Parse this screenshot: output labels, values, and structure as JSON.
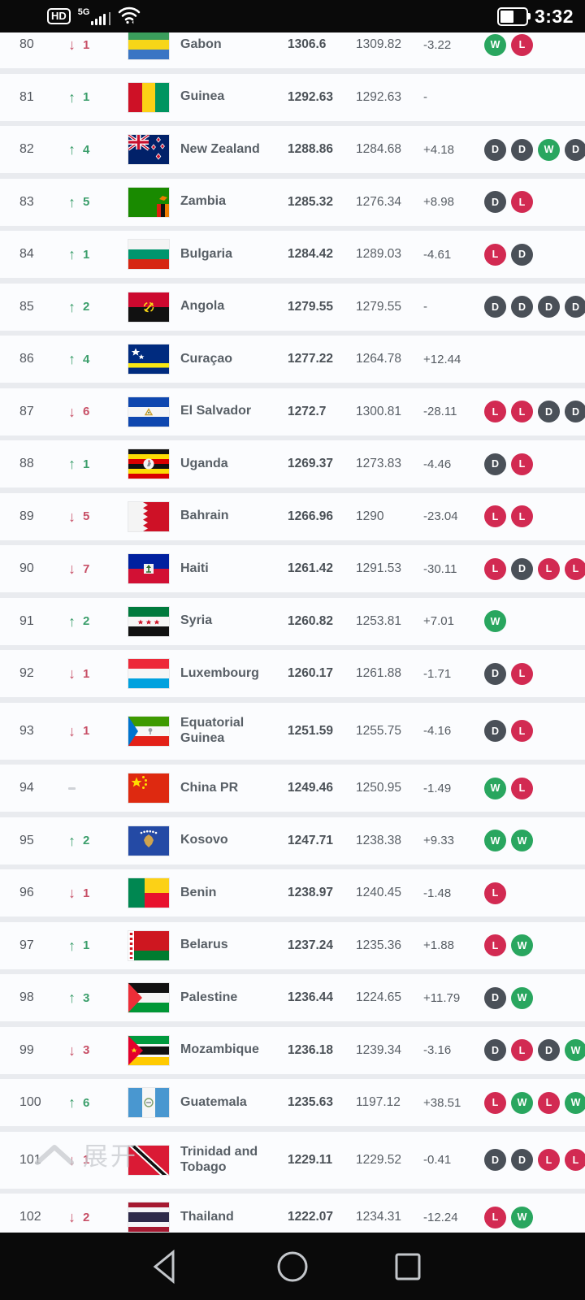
{
  "status_bar": {
    "hd_label": "HD",
    "network_label": "5G",
    "time": "3:32"
  },
  "watermark": {
    "text": "展开"
  },
  "colors": {
    "win": "#29a65f",
    "loss": "#d22a52",
    "draw": "#4a5058",
    "up": "#3b9e6b",
    "down": "#c74f66"
  },
  "table": {
    "rows": [
      {
        "rank": "80",
        "movement": "down",
        "places": "1",
        "flag": "gabon",
        "country": "Gabon",
        "points": "1306.6",
        "prev_points": "1309.82",
        "points_change": "-3.22",
        "results": [
          "W",
          "L"
        ]
      },
      {
        "rank": "81",
        "movement": "up",
        "places": "1",
        "flag": "guinea",
        "country": "Guinea",
        "points": "1292.63",
        "prev_points": "1292.63",
        "points_change": "-",
        "results": []
      },
      {
        "rank": "82",
        "movement": "up",
        "places": "4",
        "flag": "new_zealand",
        "country": "New Zealand",
        "points": "1288.86",
        "prev_points": "1284.68",
        "points_change": "+4.18",
        "results": [
          "D",
          "D",
          "W",
          "D"
        ]
      },
      {
        "rank": "83",
        "movement": "up",
        "places": "5",
        "flag": "zambia",
        "country": "Zambia",
        "points": "1285.32",
        "prev_points": "1276.34",
        "points_change": "+8.98",
        "results": [
          "D",
          "L"
        ]
      },
      {
        "rank": "84",
        "movement": "up",
        "places": "1",
        "flag": "bulgaria",
        "country": "Bulgaria",
        "points": "1284.42",
        "prev_points": "1289.03",
        "points_change": "-4.61",
        "results": [
          "L",
          "D"
        ]
      },
      {
        "rank": "85",
        "movement": "up",
        "places": "2",
        "flag": "angola",
        "country": "Angola",
        "points": "1279.55",
        "prev_points": "1279.55",
        "points_change": "-",
        "results": [
          "D",
          "D",
          "D",
          "D"
        ]
      },
      {
        "rank": "86",
        "movement": "up",
        "places": "4",
        "flag": "curacao",
        "country": "Curaçao",
        "points": "1277.22",
        "prev_points": "1264.78",
        "points_change": "+12.44",
        "results": []
      },
      {
        "rank": "87",
        "movement": "down",
        "places": "6",
        "flag": "el_salvador",
        "country": "El Salvador",
        "points": "1272.7",
        "prev_points": "1300.81",
        "points_change": "-28.11",
        "results": [
          "L",
          "L",
          "D",
          "D"
        ]
      },
      {
        "rank": "88",
        "movement": "up",
        "places": "1",
        "flag": "uganda",
        "country": "Uganda",
        "points": "1269.37",
        "prev_points": "1273.83",
        "points_change": "-4.46",
        "results": [
          "D",
          "L"
        ]
      },
      {
        "rank": "89",
        "movement": "down",
        "places": "5",
        "flag": "bahrain",
        "country": "Bahrain",
        "points": "1266.96",
        "prev_points": "1290",
        "points_change": "-23.04",
        "results": [
          "L",
          "L"
        ]
      },
      {
        "rank": "90",
        "movement": "down",
        "places": "7",
        "flag": "haiti",
        "country": "Haiti",
        "points": "1261.42",
        "prev_points": "1291.53",
        "points_change": "-30.11",
        "results": [
          "L",
          "D",
          "L",
          "L"
        ]
      },
      {
        "rank": "91",
        "movement": "up",
        "places": "2",
        "flag": "syria",
        "country": "Syria",
        "points": "1260.82",
        "prev_points": "1253.81",
        "points_change": "+7.01",
        "results": [
          "W"
        ]
      },
      {
        "rank": "92",
        "movement": "down",
        "places": "1",
        "flag": "luxembourg",
        "country": "Luxembourg",
        "points": "1260.17",
        "prev_points": "1261.88",
        "points_change": "-1.71",
        "results": [
          "D",
          "L"
        ]
      },
      {
        "rank": "93",
        "movement": "down",
        "places": "1",
        "flag": "eq_guinea",
        "country": "Equatorial Guinea",
        "points": "1251.59",
        "prev_points": "1255.75",
        "points_change": "-4.16",
        "results": [
          "D",
          "L"
        ]
      },
      {
        "rank": "94",
        "movement": "none",
        "places": "",
        "flag": "china",
        "country": "China PR",
        "points": "1249.46",
        "prev_points": "1250.95",
        "points_change": "-1.49",
        "results": [
          "W",
          "L"
        ]
      },
      {
        "rank": "95",
        "movement": "up",
        "places": "2",
        "flag": "kosovo",
        "country": "Kosovo",
        "points": "1247.71",
        "prev_points": "1238.38",
        "points_change": "+9.33",
        "results": [
          "W",
          "W"
        ]
      },
      {
        "rank": "96",
        "movement": "down",
        "places": "1",
        "flag": "benin",
        "country": "Benin",
        "points": "1238.97",
        "prev_points": "1240.45",
        "points_change": "-1.48",
        "results": [
          "L"
        ]
      },
      {
        "rank": "97",
        "movement": "up",
        "places": "1",
        "flag": "belarus",
        "country": "Belarus",
        "points": "1237.24",
        "prev_points": "1235.36",
        "points_change": "+1.88",
        "results": [
          "L",
          "W"
        ]
      },
      {
        "rank": "98",
        "movement": "up",
        "places": "3",
        "flag": "palestine",
        "country": "Palestine",
        "points": "1236.44",
        "prev_points": "1224.65",
        "points_change": "+11.79",
        "results": [
          "D",
          "W"
        ]
      },
      {
        "rank": "99",
        "movement": "down",
        "places": "3",
        "flag": "mozambique",
        "country": "Mozambique",
        "points": "1236.18",
        "prev_points": "1239.34",
        "points_change": "-3.16",
        "results": [
          "D",
          "L",
          "D",
          "W"
        ]
      },
      {
        "rank": "100",
        "movement": "up",
        "places": "6",
        "flag": "guatemala",
        "country": "Guatemala",
        "points": "1235.63",
        "prev_points": "1197.12",
        "points_change": "+38.51",
        "results": [
          "L",
          "W",
          "L",
          "W"
        ]
      },
      {
        "rank": "101",
        "movement": "down",
        "places": "1",
        "flag": "trinidad",
        "country": "Trinidad and Tobago",
        "points": "1229.11",
        "prev_points": "1229.52",
        "points_change": "-0.41",
        "results": [
          "D",
          "D",
          "L",
          "L"
        ]
      },
      {
        "rank": "102",
        "movement": "down",
        "places": "2",
        "flag": "thailand",
        "country": "Thailand",
        "points": "1222.07",
        "prev_points": "1234.31",
        "points_change": "-12.24",
        "results": [
          "L",
          "W"
        ]
      }
    ]
  }
}
